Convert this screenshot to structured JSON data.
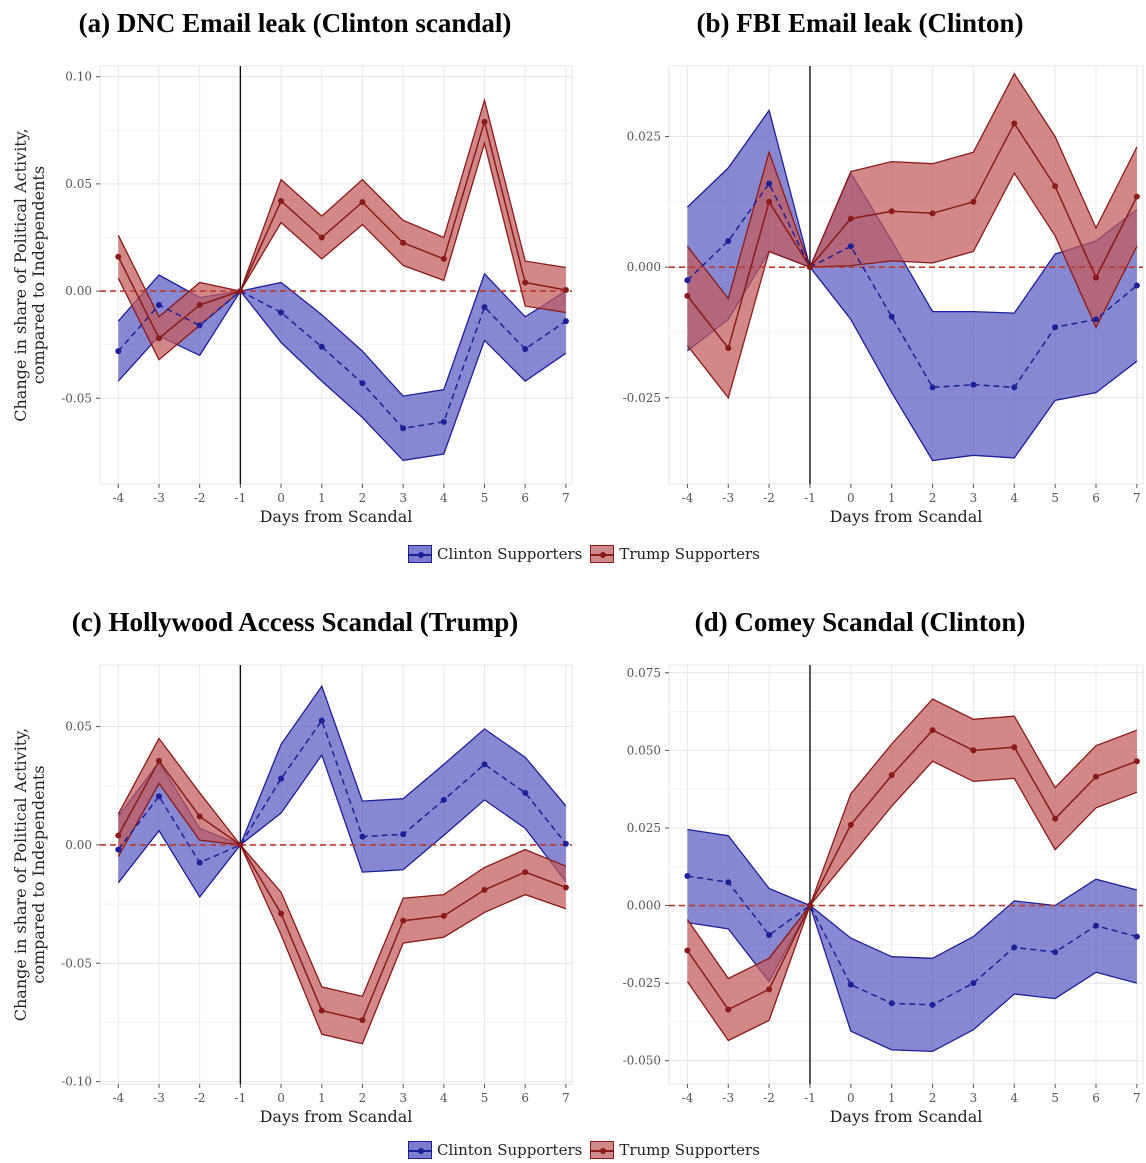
{
  "titles": {
    "a": "(a) DNC Email leak (Clinton scandal)",
    "b": "(b) FBI Email leak (Clinton)",
    "c": "(c) Hollywood Access Scandal (Trump)",
    "d": "(d) Comey Scandal (Clinton)"
  },
  "legend": {
    "clinton": "Clinton Supporters",
    "trump": "Trump Supporters"
  },
  "colors": {
    "clinton": "#1f1f99",
    "clinton_fill": "#5a5ac0",
    "trump": "#8b1a1a",
    "trump_fill": "#c25a5a",
    "zero_line": "#c0392b"
  },
  "chart_data": [
    {
      "id": "a",
      "type": "line",
      "title": "(a) DNC Email leak (Clinton scandal)",
      "xlabel": "Days from Scandal",
      "ylabel": "Change in share of Political Activity, compared to Independents",
      "x": [
        -4,
        -3,
        -2,
        -1,
        0,
        1,
        2,
        3,
        4,
        5,
        6,
        7
      ],
      "ylim": [
        -0.09,
        0.105
      ],
      "yticks": [
        -0.05,
        0,
        0.05,
        0.1
      ],
      "ytick_labels": [
        "-0.05",
        "0.00",
        "0.05",
        "0.10"
      ],
      "series": [
        {
          "name": "Clinton Supporters",
          "values": [
            -0.028,
            -0.0065,
            -0.016,
            0,
            -0.01,
            -0.026,
            -0.043,
            -0.064,
            -0.061,
            -0.0075,
            -0.027,
            -0.014
          ],
          "lower": [
            -0.042,
            -0.021,
            -0.03,
            0,
            -0.024,
            -0.042,
            -0.059,
            -0.079,
            -0.076,
            -0.023,
            -0.042,
            -0.029
          ],
          "upper": [
            -0.014,
            0.0075,
            -0.003,
            0,
            0.004,
            -0.011,
            -0.028,
            -0.049,
            -0.046,
            0.008,
            -0.012,
            0.0
          ]
        },
        {
          "name": "Trump Supporters",
          "values": [
            0.016,
            -0.022,
            -0.0065,
            0,
            0.042,
            0.025,
            0.0415,
            0.0225,
            0.015,
            0.079,
            0.004,
            0.0005
          ],
          "lower": [
            0.006,
            -0.032,
            -0.016,
            0,
            0.032,
            0.015,
            0.031,
            0.012,
            0.005,
            0.069,
            -0.007,
            -0.01
          ],
          "upper": [
            0.026,
            -0.012,
            0.004,
            0,
            0.052,
            0.035,
            0.052,
            0.033,
            0.025,
            0.089,
            0.014,
            0.011
          ]
        }
      ]
    },
    {
      "id": "b",
      "type": "line",
      "title": "(b) FBI Email leak (Clinton)",
      "xlabel": "Days from Scandal",
      "ylabel": "",
      "x": [
        -4,
        -3,
        -2,
        -1,
        0,
        1,
        2,
        3,
        4,
        5,
        6,
        7
      ],
      "ylim": [
        -0.0415,
        0.0385
      ],
      "yticks": [
        -0.025,
        0,
        0.025
      ],
      "ytick_labels": [
        "-0.025",
        "0.000",
        "0.025"
      ],
      "series": [
        {
          "name": "Clinton Supporters",
          "values": [
            -0.0025,
            0.005,
            0.016,
            0,
            0.004,
            -0.0095,
            -0.023,
            -0.0225,
            -0.023,
            -0.0115,
            -0.01,
            -0.0035
          ],
          "lower": [
            -0.016,
            -0.01,
            0.003,
            0,
            -0.01,
            -0.024,
            -0.037,
            -0.036,
            -0.0365,
            -0.0255,
            -0.024,
            -0.018
          ],
          "upper": [
            0.0115,
            0.019,
            0.03,
            0,
            0.018,
            0.005,
            -0.0085,
            -0.0085,
            -0.0088,
            0.0025,
            0.005,
            0.011
          ]
        },
        {
          "name": "Trump Supporters",
          "values": [
            -0.0055,
            -0.0155,
            0.0125,
            0,
            0.0093,
            0.0107,
            0.0103,
            0.0125,
            0.0275,
            0.0155,
            -0.002,
            0.0135
          ],
          "lower": [
            -0.015,
            -0.025,
            0.003,
            0,
            0.0003,
            0.0012,
            0.0008,
            0.003,
            0.018,
            0.006,
            -0.0115,
            0.004
          ],
          "upper": [
            0.004,
            -0.006,
            0.022,
            0,
            0.0183,
            0.0202,
            0.0198,
            0.022,
            0.037,
            0.025,
            0.0075,
            0.023
          ]
        }
      ]
    },
    {
      "id": "c",
      "type": "line",
      "title": "(c) Hollywood Access Scandal (Trump)",
      "xlabel": "Days from Scandal",
      "ylabel": "Change in share of Political Activity, compared to Independents",
      "x": [
        -4,
        -3,
        -2,
        -1,
        0,
        1,
        2,
        3,
        4,
        5,
        6,
        7
      ],
      "ylim": [
        -0.101,
        0.076
      ],
      "yticks": [
        -0.1,
        -0.05,
        0,
        0.05
      ],
      "ytick_labels": [
        "-0.10",
        "-0.05",
        "0.00",
        "0.05"
      ],
      "series": [
        {
          "name": "Clinton Supporters",
          "values": [
            -0.002,
            0.0205,
            -0.0075,
            0,
            0.028,
            0.0525,
            0.0035,
            0.0045,
            0.019,
            0.034,
            0.022,
            0.0005
          ],
          "lower": [
            -0.016,
            0.006,
            -0.022,
            0,
            0.0135,
            0.038,
            -0.0115,
            -0.0105,
            0.004,
            0.019,
            0.007,
            -0.0155
          ],
          "upper": [
            0.012,
            0.035,
            0.007,
            0,
            0.0425,
            0.067,
            0.0185,
            0.0195,
            0.034,
            0.049,
            0.037,
            0.0165
          ]
        },
        {
          "name": "Trump Supporters",
          "values": [
            0.004,
            0.0355,
            0.012,
            0,
            -0.029,
            -0.07,
            -0.074,
            -0.032,
            -0.03,
            -0.019,
            -0.0115,
            -0.018
          ],
          "lower": [
            -0.005,
            0.026,
            0.002,
            0,
            -0.038,
            -0.08,
            -0.084,
            -0.0415,
            -0.039,
            -0.0285,
            -0.021,
            -0.027
          ],
          "upper": [
            0.013,
            0.045,
            0.022,
            0,
            -0.02,
            -0.06,
            -0.064,
            -0.0225,
            -0.021,
            -0.0095,
            -0.002,
            -0.009
          ]
        }
      ]
    },
    {
      "id": "d",
      "type": "line",
      "title": "(d) Comey Scandal (Clinton)",
      "xlabel": "Days from Scandal",
      "ylabel": "",
      "x": [
        -4,
        -3,
        -2,
        -1,
        0,
        1,
        2,
        3,
        4,
        5,
        6,
        7
      ],
      "ylim": [
        -0.0575,
        0.0775
      ],
      "yticks": [
        -0.05,
        -0.025,
        0,
        0.025,
        0.05,
        0.075
      ],
      "ytick_labels": [
        "-0.050",
        "-0.025",
        "0.000",
        "0.025",
        "0.050",
        "0.075"
      ],
      "series": [
        {
          "name": "Clinton Supporters",
          "values": [
            0.0095,
            0.0075,
            -0.0095,
            0,
            -0.0255,
            -0.0315,
            -0.032,
            -0.025,
            -0.0135,
            -0.015,
            -0.0065,
            -0.01
          ],
          "lower": [
            -0.0055,
            -0.0075,
            -0.0245,
            0,
            -0.0405,
            -0.0465,
            -0.047,
            -0.04,
            -0.0285,
            -0.03,
            -0.0215,
            -0.025
          ],
          "upper": [
            0.0245,
            0.0225,
            0.0055,
            0,
            -0.0105,
            -0.0165,
            -0.017,
            -0.01,
            0.0015,
            0.0,
            0.0085,
            0.005
          ]
        },
        {
          "name": "Trump Supporters",
          "values": [
            -0.0145,
            -0.0335,
            -0.027,
            0,
            0.026,
            0.042,
            0.0565,
            0.05,
            0.051,
            0.028,
            0.0415,
            0.0465
          ],
          "lower": [
            -0.0245,
            -0.0435,
            -0.037,
            0,
            0.016,
            0.032,
            0.0465,
            0.04,
            0.041,
            0.018,
            0.0315,
            0.0365
          ],
          "upper": [
            -0.0045,
            -0.0235,
            -0.017,
            0,
            0.036,
            0.052,
            0.0665,
            0.06,
            0.061,
            0.038,
            0.0515,
            0.0565
          ]
        }
      ]
    }
  ]
}
